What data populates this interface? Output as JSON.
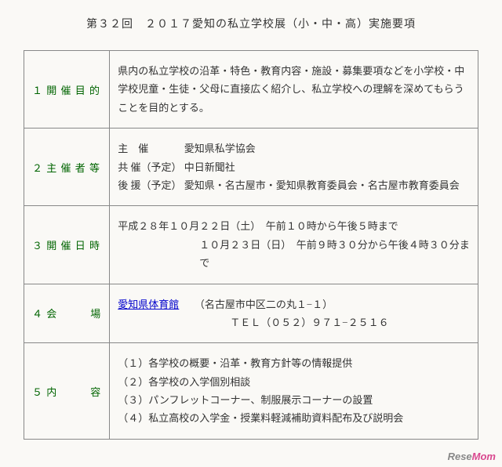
{
  "title": "第３２回　２０１７愛知の私立学校展（小・中・高）実施要項",
  "colors": {
    "label": "#006400",
    "border": "#888888",
    "background": "#faf9f6",
    "link": "#0000cc",
    "watermark_rese": "#888888",
    "watermark_mom": "#d9488f"
  },
  "typography": {
    "body_fontsize": 13,
    "title_fontsize": 14,
    "font_family": "serif/Mincho"
  },
  "rows": [
    {
      "num": "１",
      "label": "開 催 目 的",
      "content": "県内の私立学校の沿革・特色・教育内容・施設・募集要項などを小学校・中学校児童・生徒・父母に直接広く紹介し、私立学校への理解を深めてもらうことを目的とする。"
    },
    {
      "num": "２",
      "label": "主 催 者 等",
      "sponsors": [
        {
          "role": "主　催",
          "body": "愛知県私学協会"
        },
        {
          "role": "共 催（予定）",
          "body": "中日新聞社"
        },
        {
          "role": "後 援（予定）",
          "body": "愛知県・名古屋市・愛知県教育委員会・名古屋市教育委員会"
        }
      ]
    },
    {
      "num": "３",
      "label": "開 催 日 時",
      "line1": "平成２８年１０月２２日（土）　午前１０時から午後５時まで",
      "line2_indent": "１０月２３日（日）　午前９時３０分から午後４時３０分まで"
    },
    {
      "num": "４",
      "label": "会　　　場",
      "venue_link": "愛知県体育館",
      "venue_addr": "（名古屋市中区二の丸１−１）",
      "venue_tel_indent": "ＴＥＬ（０５２）９７１−２５１６"
    },
    {
      "num": "５",
      "label": "内　　　容",
      "items": [
        "（１）各学校の概要・沿革・教育方針等の情報提供",
        "（２）各学校の入学個別相談",
        "（３）パンフレットコーナー、制服展示コーナーの設置",
        "（４）私立高校の入学金・授業料軽減補助資料配布及び説明会"
      ]
    }
  ],
  "watermark": {
    "rese": "Rese",
    "mom": "Mom"
  }
}
